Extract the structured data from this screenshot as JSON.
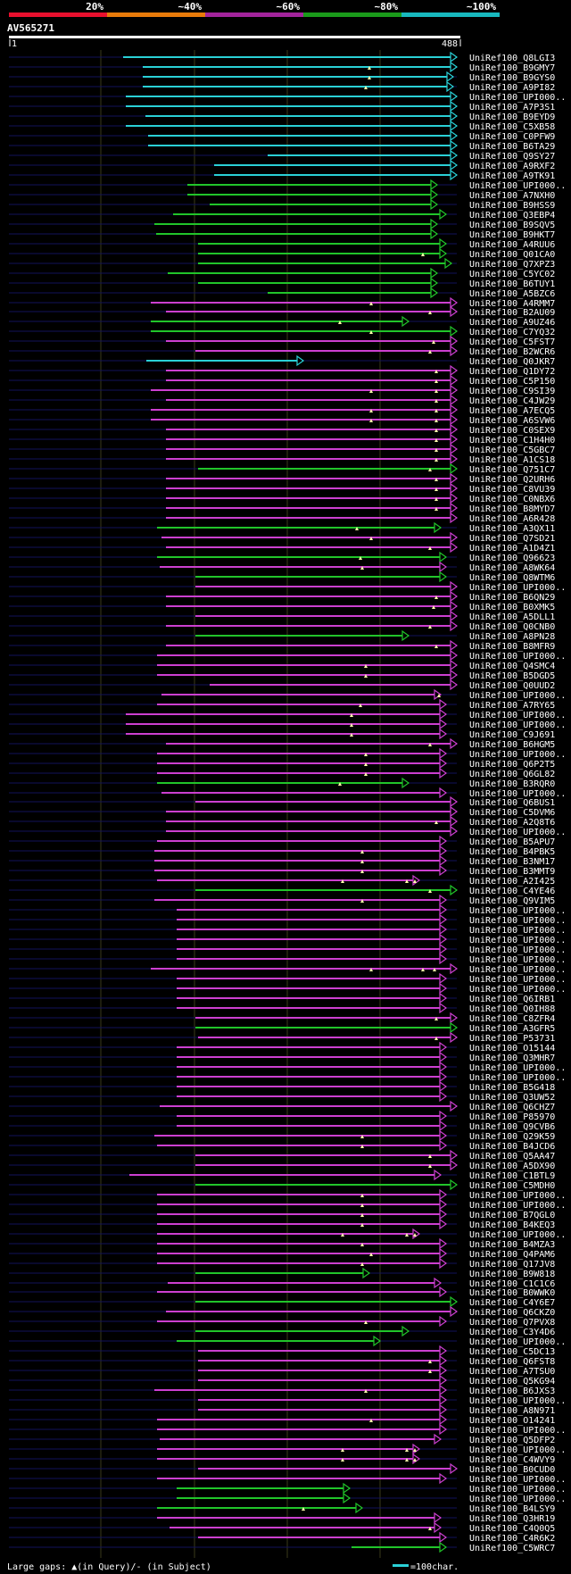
{
  "chart_data": {
    "type": "alignment_overview",
    "query": {
      "name": "AV565271",
      "start": "1",
      "end": "488",
      "length": 488
    },
    "identity_scale": [
      {
        "label": "20%",
        "color": "#e8102e"
      },
      {
        "label": "~40%",
        "color": "#e87b0a"
      },
      {
        "label": "~60%",
        "color": "#a3249c"
      },
      {
        "label": "~80%",
        "color": "#1a9a1a"
      },
      {
        "label": "~100%",
        "color": "#18b8be"
      }
    ],
    "colors": {
      "cyan": "#2ad0d6",
      "green": "#21c52a",
      "magenta": "#cc3fd0",
      "bg": "#000000",
      "ctx": "#12125a",
      "grid": "#3a3a1a"
    },
    "legend": {
      "gaps": "Large gaps: ▲(in Query)/- (in Subject)",
      "scale": "=100char."
    },
    "hits": [
      [
        "UniRef100_Q8LGI3",
        138,
        512,
        "cyan",
        []
      ],
      [
        "UniRef100_B9GMY7",
        160,
        512,
        "cyan",
        [
          414
        ]
      ],
      [
        "UniRef100_B9GYS0",
        160,
        508,
        "cyan",
        [
          414
        ]
      ],
      [
        "UniRef100_A9PI82",
        160,
        508,
        "cyan",
        [
          410
        ]
      ],
      [
        "UniRef100_UPI000..",
        141,
        512,
        "cyan",
        []
      ],
      [
        "UniRef100_A7P3S1",
        141,
        512,
        "cyan",
        []
      ],
      [
        "UniRef100_B9EYD9",
        163,
        512,
        "cyan",
        []
      ],
      [
        "UniRef100_C5XB58",
        141,
        512,
        "cyan",
        []
      ],
      [
        "UniRef100_C0PFW9",
        166,
        512,
        "cyan",
        []
      ],
      [
        "UniRef100_B6TA29",
        166,
        512,
        "cyan",
        []
      ],
      [
        "UniRef100_Q9SY27",
        300,
        512,
        "cyan",
        []
      ],
      [
        "UniRef100_A9RXF2",
        240,
        512,
        "cyan",
        []
      ],
      [
        "UniRef100_A9TK91",
        240,
        512,
        "cyan",
        []
      ],
      [
        "UniRef100_UPI000..",
        210,
        490,
        "green",
        []
      ],
      [
        "UniRef100_A7NXH0",
        210,
        490,
        "green",
        []
      ],
      [
        "UniRef100_B9HSS9",
        235,
        490,
        "green",
        []
      ],
      [
        "UniRef100_Q3EBP4",
        194,
        500,
        "green",
        []
      ],
      [
        "UniRef100_B9SQV5",
        173,
        490,
        "green",
        []
      ],
      [
        "UniRef100_B9HKT7",
        175,
        490,
        "green",
        []
      ],
      [
        "UniRef100_A4RUU6",
        222,
        500,
        "green",
        []
      ],
      [
        "UniRef100_Q01CA0",
        222,
        500,
        "green",
        [
          474
        ]
      ],
      [
        "UniRef100_Q7XPZ3",
        222,
        506,
        "green",
        []
      ],
      [
        "UniRef100_C5YC02",
        188,
        490,
        "green",
        []
      ],
      [
        "UniRef100_B6TUY1",
        222,
        490,
        "green",
        []
      ],
      [
        "UniRef100_A5BZC6",
        300,
        490,
        "green",
        []
      ],
      [
        "UniRef100_A4RMM7",
        169,
        512,
        "magenta",
        [
          416
        ]
      ],
      [
        "UniRef100_B2AU09",
        186,
        512,
        "magenta",
        [
          482
        ]
      ],
      [
        "UniRef100_A9UZ46",
        169,
        458,
        "green",
        [
          381
        ]
      ],
      [
        "UniRef100_C7YQ32",
        169,
        512,
        "green",
        [
          416
        ]
      ],
      [
        "UniRef100_C5FST7",
        186,
        512,
        "magenta",
        [
          486
        ]
      ],
      [
        "UniRef100_B2WCR6",
        219,
        512,
        "magenta",
        [
          482
        ]
      ],
      [
        "UniRef100_Q0JKR7",
        164,
        340,
        "cyan",
        []
      ],
      [
        "UniRef100_Q1DY72",
        186,
        512,
        "magenta",
        [
          489
        ]
      ],
      [
        "UniRef100_C5P150",
        186,
        512,
        "magenta",
        [
          489
        ]
      ],
      [
        "UniRef100_C9SI39",
        169,
        512,
        "magenta",
        [
          416,
          489
        ]
      ],
      [
        "UniRef100_C4JW29",
        186,
        512,
        "magenta",
        [
          489
        ]
      ],
      [
        "UniRef100_A7ECQ5",
        169,
        512,
        "magenta",
        [
          416,
          489
        ]
      ],
      [
        "UniRef100_A6SVW6",
        169,
        512,
        "magenta",
        [
          416,
          489
        ]
      ],
      [
        "UniRef100_C0SEX9",
        186,
        512,
        "magenta",
        [
          489
        ]
      ],
      [
        "UniRef100_C1H4H0",
        186,
        512,
        "magenta",
        [
          489
        ]
      ],
      [
        "UniRef100_C5GBC7",
        186,
        512,
        "magenta",
        [
          489
        ]
      ],
      [
        "UniRef100_A1CS18",
        186,
        512,
        "magenta",
        [
          489
        ]
      ],
      [
        "UniRef100_Q751C7",
        222,
        512,
        "green",
        [
          482
        ]
      ],
      [
        "UniRef100_Q2URH6",
        186,
        512,
        "magenta",
        [
          489
        ]
      ],
      [
        "UniRef100_C8VU39",
        186,
        512,
        "magenta",
        [
          489
        ]
      ],
      [
        "UniRef100_C0NBX6",
        186,
        512,
        "magenta",
        [
          489
        ]
      ],
      [
        "UniRef100_B8MYD7",
        186,
        512,
        "magenta",
        [
          489
        ]
      ],
      [
        "UniRef100_A6R428",
        186,
        512,
        "magenta",
        []
      ],
      [
        "UniRef100_A3QX11",
        176,
        494,
        "green",
        [
          400
        ]
      ],
      [
        "UniRef100_Q7SD21",
        181,
        512,
        "magenta",
        [
          416
        ]
      ],
      [
        "UniRef100_A1D4Z1",
        186,
        512,
        "magenta",
        [
          482
        ]
      ],
      [
        "UniRef100_Q96623",
        176,
        500,
        "green",
        [
          404
        ]
      ],
      [
        "UniRef100_A8WK64",
        179,
        500,
        "magenta",
        [
          406
        ]
      ],
      [
        "UniRef100_Q8WTM6",
        219,
        500,
        "green",
        []
      ],
      [
        "UniRef100_UPI000..",
        219,
        512,
        "magenta",
        []
      ],
      [
        "UniRef100_B6QN29",
        186,
        512,
        "magenta",
        [
          489
        ]
      ],
      [
        "UniRef100_B0XMK5",
        186,
        512,
        "magenta",
        [
          486
        ]
      ],
      [
        "UniRef100_A5DLL1",
        219,
        512,
        "magenta",
        []
      ],
      [
        "UniRef100_Q0CNB0",
        186,
        512,
        "magenta",
        [
          482
        ]
      ],
      [
        "UniRef100_A8PN28",
        219,
        458,
        "green",
        []
      ],
      [
        "UniRef100_B8MFR9",
        186,
        512,
        "magenta",
        [
          489
        ]
      ],
      [
        "UniRef100_UPI000..",
        176,
        512,
        "magenta",
        []
      ],
      [
        "UniRef100_Q4SMC4",
        176,
        512,
        "magenta",
        [
          410
        ]
      ],
      [
        "UniRef100_B5DGD5",
        176,
        512,
        "magenta",
        [
          410
        ]
      ],
      [
        "UniRef100_Q0UUD2",
        235,
        512,
        "magenta",
        []
      ],
      [
        "UniRef100_UPI000..",
        181,
        494,
        "magenta",
        [
          492
        ]
      ],
      [
        "UniRef100_A7RY65",
        176,
        500,
        "magenta",
        [
          404
        ]
      ],
      [
        "UniRef100_UPI000..",
        141,
        500,
        "magenta",
        [
          394
        ]
      ],
      [
        "UniRef100_UPI000..",
        141,
        500,
        "magenta",
        [
          394
        ]
      ],
      [
        "UniRef100_C9J691",
        141,
        500,
        "magenta",
        [
          394
        ]
      ],
      [
        "UniRef100_B6HGM5",
        186,
        512,
        "magenta",
        [
          482
        ]
      ],
      [
        "UniRef100_UPI000..",
        176,
        500,
        "magenta",
        [
          410
        ]
      ],
      [
        "UniRef100_Q6P2T5",
        176,
        500,
        "magenta",
        [
          410
        ]
      ],
      [
        "UniRef100_Q6GL82",
        176,
        500,
        "magenta",
        [
          410
        ]
      ],
      [
        "UniRef100_B3RQR0",
        176,
        458,
        "green",
        [
          381
        ]
      ],
      [
        "UniRef100_UPI000..",
        181,
        500,
        "magenta",
        []
      ],
      [
        "UniRef100_Q6BUS1",
        219,
        512,
        "magenta",
        []
      ],
      [
        "UniRef100_C5DVM6",
        186,
        512,
        "magenta",
        []
      ],
      [
        "UniRef100_A2Q8T6",
        186,
        512,
        "magenta",
        [
          489
        ]
      ],
      [
        "UniRef100_UPI000..",
        186,
        512,
        "magenta",
        []
      ],
      [
        "UniRef100_B5APU7",
        176,
        500,
        "magenta",
        []
      ],
      [
        "UniRef100_B4PBK5",
        173,
        500,
        "magenta",
        [
          406
        ]
      ],
      [
        "UniRef100_B3NM17",
        173,
        500,
        "magenta",
        [
          406
        ]
      ],
      [
        "UniRef100_B3MMT9",
        173,
        500,
        "magenta",
        [
          406
        ]
      ],
      [
        "UniRef100_A2I425",
        176,
        470,
        "magenta",
        [
          384,
          456,
          465
        ]
      ],
      [
        "UniRef100_C4YE46",
        219,
        512,
        "green",
        [
          482
        ]
      ],
      [
        "UniRef100_Q9VIM5",
        173,
        500,
        "magenta",
        [
          406
        ]
      ],
      [
        "UniRef100_UPI000..",
        198,
        500,
        "magenta",
        []
      ],
      [
        "UniRef100_UPI000..",
        198,
        500,
        "magenta",
        []
      ],
      [
        "UniRef100_UPI000..",
        198,
        500,
        "magenta",
        []
      ],
      [
        "UniRef100_UPI000..",
        198,
        500,
        "magenta",
        []
      ],
      [
        "UniRef100_UPI000..",
        198,
        500,
        "magenta",
        []
      ],
      [
        "UniRef100_UPI000..",
        198,
        500,
        "magenta",
        []
      ],
      [
        "UniRef100_UPI000..",
        169,
        512,
        "magenta",
        [
          416,
          474,
          487
        ]
      ],
      [
        "UniRef100_UPI000..",
        198,
        500,
        "magenta",
        []
      ],
      [
        "UniRef100_UPI000..",
        198,
        500,
        "magenta",
        []
      ],
      [
        "UniRef100_Q6IRB1",
        198,
        500,
        "magenta",
        []
      ],
      [
        "UniRef100_Q0IH88",
        198,
        500,
        "magenta",
        []
      ],
      [
        "UniRef100_C8ZFR4",
        219,
        512,
        "magenta",
        [
          489
        ]
      ],
      [
        "UniRef100_A3GFR5",
        219,
        512,
        "green",
        []
      ],
      [
        "UniRef100_P53731",
        222,
        512,
        "magenta",
        [
          489
        ]
      ],
      [
        "UniRef100_O15144",
        198,
        500,
        "magenta",
        []
      ],
      [
        "UniRef100_Q3MHR7",
        198,
        500,
        "magenta",
        []
      ],
      [
        "UniRef100_UPI000..",
        198,
        500,
        "magenta",
        []
      ],
      [
        "UniRef100_UPI000..",
        198,
        500,
        "magenta",
        []
      ],
      [
        "UniRef100_B5G418",
        198,
        500,
        "magenta",
        []
      ],
      [
        "UniRef100_Q3UW52",
        198,
        500,
        "magenta",
        []
      ],
      [
        "UniRef100_Q6CHZ7",
        179,
        512,
        "magenta",
        []
      ],
      [
        "UniRef100_P85970",
        198,
        500,
        "magenta",
        []
      ],
      [
        "UniRef100_Q9CVB6",
        198,
        500,
        "magenta",
        []
      ],
      [
        "UniRef100_Q29K59",
        173,
        500,
        "magenta",
        [
          406
        ]
      ],
      [
        "UniRef100_B4JCD6",
        176,
        500,
        "magenta",
        [
          406
        ]
      ],
      [
        "UniRef100_Q5AA47",
        219,
        512,
        "magenta",
        [
          482
        ]
      ],
      [
        "UniRef100_A5DX90",
        219,
        512,
        "magenta",
        [
          482
        ]
      ],
      [
        "UniRef100_C1BTL9",
        145,
        494,
        "magenta",
        []
      ],
      [
        "UniRef100_C5MDH0",
        219,
        512,
        "green",
        []
      ],
      [
        "UniRef100_UPI000..",
        176,
        500,
        "magenta",
        [
          406
        ]
      ],
      [
        "UniRef100_UPI000..",
        176,
        500,
        "magenta",
        [
          406
        ]
      ],
      [
        "UniRef100_B7QGL0",
        176,
        500,
        "magenta",
        [
          406
        ]
      ],
      [
        "UniRef100_B4KEQ3",
        176,
        500,
        "magenta",
        [
          406
        ]
      ],
      [
        "UniRef100_UPI000..",
        176,
        470,
        "magenta",
        [
          384,
          456,
          465
        ]
      ],
      [
        "UniRef100_B4MZA3",
        176,
        500,
        "magenta",
        [
          406
        ]
      ],
      [
        "UniRef100_Q4PAM6",
        176,
        500,
        "magenta",
        [
          416
        ]
      ],
      [
        "UniRef100_Q17JV8",
        176,
        500,
        "magenta",
        [
          406
        ]
      ],
      [
        "UniRef100_B9W818",
        219,
        414,
        "green",
        []
      ],
      [
        "UniRef100_C1C1C6",
        188,
        494,
        "magenta",
        []
      ],
      [
        "UniRef100_B0WWK0",
        176,
        500,
        "magenta",
        []
      ],
      [
        "UniRef100_C4Y6E7",
        219,
        512,
        "green",
        []
      ],
      [
        "UniRef100_Q6CKZ0",
        186,
        512,
        "magenta",
        []
      ],
      [
        "UniRef100_Q7PVX8",
        176,
        500,
        "magenta",
        [
          410
        ]
      ],
      [
        "UniRef100_C3Y4D6",
        219,
        458,
        "green",
        []
      ],
      [
        "UniRef100_UPI000..",
        198,
        426,
        "green",
        []
      ],
      [
        "UniRef100_C5DC13",
        222,
        500,
        "magenta",
        []
      ],
      [
        "UniRef100_Q6FST8",
        222,
        500,
        "magenta",
        [
          482
        ]
      ],
      [
        "UniRef100_A7TSU0",
        222,
        500,
        "magenta",
        [
          482
        ]
      ],
      [
        "UniRef100_Q5KG94",
        222,
        500,
        "magenta",
        []
      ],
      [
        "UniRef100_B6JXS3",
        173,
        500,
        "magenta",
        [
          410
        ]
      ],
      [
        "UniRef100_UPI000..",
        222,
        500,
        "magenta",
        []
      ],
      [
        "UniRef100_A8N971",
        222,
        500,
        "magenta",
        []
      ],
      [
        "UniRef100_O14241",
        176,
        500,
        "magenta",
        [
          416
        ]
      ],
      [
        "UniRef100_UPI000..",
        176,
        500,
        "magenta",
        []
      ],
      [
        "UniRef100_Q5DFP2",
        179,
        494,
        "magenta",
        []
      ],
      [
        "UniRef100_UPI000..",
        176,
        470,
        "magenta",
        [
          384,
          456,
          465
        ]
      ],
      [
        "UniRef100_C4WVY9",
        176,
        470,
        "magenta",
        [
          384,
          456,
          465
        ]
      ],
      [
        "UniRef100_B0CUD0",
        222,
        512,
        "magenta",
        []
      ],
      [
        "UniRef100_UPI000..",
        176,
        500,
        "magenta",
        []
      ],
      [
        "UniRef100_UPI000..",
        198,
        392,
        "green",
        []
      ],
      [
        "UniRef100_UPI000..",
        198,
        392,
        "green",
        []
      ],
      [
        "UniRef100_B4LSY9",
        176,
        406,
        "green",
        [
          340
        ]
      ],
      [
        "UniRef100_Q3HR19",
        176,
        494,
        "magenta",
        []
      ],
      [
        "UniRef100_C4Q0Q5",
        190,
        494,
        "magenta",
        [
          482
        ]
      ],
      [
        "UniRef100_C4R6K2",
        222,
        500,
        "magenta",
        []
      ],
      [
        "UniRef100_C5WRC7",
        394,
        500,
        "green",
        []
      ]
    ]
  }
}
